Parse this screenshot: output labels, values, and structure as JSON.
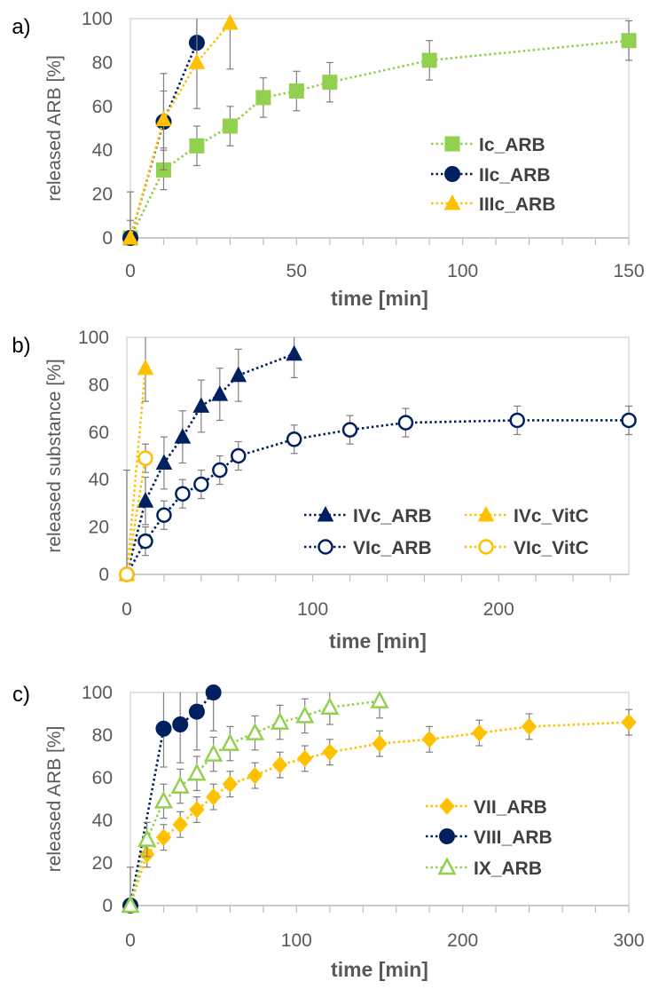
{
  "colors": {
    "green": "#92d050",
    "navy": "#002060",
    "gold": "#ffc000",
    "axis": "#bfbfbf",
    "errbar": "#7f7f7f"
  },
  "chart_data": [
    {
      "type": "line",
      "panel_label": "a)",
      "xlabel": "time [min]",
      "ylabel": "released ARB [%]",
      "xlim": [
        0,
        150
      ],
      "ylim": [
        0,
        100
      ],
      "xticks": [
        0,
        50,
        100,
        150
      ],
      "xminor": 10,
      "yticks": [
        0,
        20,
        40,
        60,
        80,
        100
      ],
      "grid": false,
      "legend": "center-right",
      "series": [
        {
          "name": "Ic_ARB",
          "color": "green",
          "marker": "square",
          "filled": true,
          "x": [
            0,
            10,
            20,
            30,
            40,
            50,
            60,
            90,
            150
          ],
          "y": [
            0,
            31,
            42,
            51,
            64,
            67,
            71,
            81,
            90
          ],
          "err": [
            0,
            9,
            9,
            9,
            9,
            9,
            9,
            9,
            9
          ]
        },
        {
          "name": "IIc_ARB",
          "color": "navy",
          "marker": "circle",
          "filled": true,
          "x": [
            0,
            10,
            20
          ],
          "y": [
            0,
            53,
            89
          ],
          "err": [
            21,
            22,
            11
          ]
        },
        {
          "name": "IIIc_ARB",
          "color": "gold",
          "marker": "triangle",
          "filled": true,
          "x": [
            0,
            10,
            20,
            30
          ],
          "y": [
            0,
            54,
            80,
            98
          ],
          "err": [
            8,
            13,
            21,
            21
          ]
        }
      ]
    },
    {
      "type": "line",
      "panel_label": "b)",
      "xlabel": "time [min]",
      "ylabel": "released substance [%]",
      "xlim": [
        0,
        270
      ],
      "ylim": [
        0,
        100
      ],
      "xticks": [
        0,
        100,
        200
      ],
      "xminor": 20,
      "yticks": [
        0,
        20,
        40,
        60,
        80,
        100
      ],
      "grid": false,
      "legend": "lower-right, two columns",
      "series": [
        {
          "name": "IVc_ARB",
          "color": "navy",
          "marker": "triangle",
          "filled": true,
          "x": [
            0,
            10,
            20,
            30,
            40,
            50,
            60,
            90
          ],
          "y": [
            0,
            31,
            47,
            58,
            71,
            76,
            84,
            93
          ],
          "err": [
            0,
            10,
            11,
            11,
            11,
            11,
            11,
            10
          ]
        },
        {
          "name": "IVc_VitC",
          "color": "gold",
          "marker": "triangle",
          "filled": true,
          "x": [
            0,
            10
          ],
          "y": [
            0,
            87
          ],
          "err": [
            0,
            14
          ]
        },
        {
          "name": "VIc_ARB",
          "color": "navy",
          "marker": "circle",
          "filled": false,
          "x": [
            0,
            10,
            20,
            30,
            40,
            50,
            60,
            90,
            120,
            150,
            210,
            270
          ],
          "y": [
            0,
            14,
            25,
            34,
            38,
            44,
            50,
            57,
            61,
            64,
            65,
            65
          ],
          "err": [
            0,
            6,
            6,
            6,
            6,
            6,
            6,
            6,
            6,
            6,
            6,
            6
          ]
        },
        {
          "name": "VIc_VitC",
          "color": "gold",
          "marker": "circle",
          "filled": false,
          "x": [
            0,
            10
          ],
          "y": [
            0,
            49
          ],
          "err": [
            44,
            6
          ]
        }
      ]
    },
    {
      "type": "line",
      "panel_label": "c)",
      "xlabel": "time [min]",
      "ylabel": "released ARB [%]",
      "xlim": [
        0,
        300
      ],
      "ylim": [
        0,
        100
      ],
      "xticks": [
        0,
        100,
        200,
        300
      ],
      "xminor": 20,
      "yticks": [
        0,
        20,
        40,
        60,
        80,
        100
      ],
      "grid": false,
      "legend": "center-right",
      "series": [
        {
          "name": "VII_ARB",
          "color": "gold",
          "marker": "diamond",
          "filled": true,
          "x": [
            0,
            10,
            20,
            30,
            40,
            50,
            60,
            75,
            90,
            105,
            120,
            150,
            180,
            210,
            240,
            300
          ],
          "y": [
            0,
            24,
            32,
            38,
            45,
            51,
            57,
            61,
            66,
            69,
            72,
            76,
            78,
            81,
            84,
            86
          ],
          "err": [
            0,
            6,
            6,
            6,
            6,
            6,
            6,
            6,
            6,
            6,
            6,
            6,
            6,
            6,
            6,
            6
          ]
        },
        {
          "name": "VIII_ARB",
          "color": "navy",
          "marker": "circle",
          "filled": true,
          "x": [
            0,
            20,
            30,
            40,
            50
          ],
          "y": [
            0,
            83,
            85,
            91,
            100
          ],
          "err": [
            18,
            18,
            18,
            18,
            18
          ]
        },
        {
          "name": "IX_ARB",
          "color": "green",
          "marker": "triangle",
          "filled": false,
          "x": [
            0,
            10,
            20,
            30,
            40,
            50,
            60,
            75,
            90,
            105,
            120,
            150
          ],
          "y": [
            0,
            31,
            49,
            56,
            62,
            71,
            76,
            81,
            86,
            89,
            93,
            96
          ],
          "err": [
            0,
            8,
            8,
            8,
            8,
            8,
            8,
            8,
            8,
            8,
            8,
            8
          ]
        }
      ]
    }
  ]
}
